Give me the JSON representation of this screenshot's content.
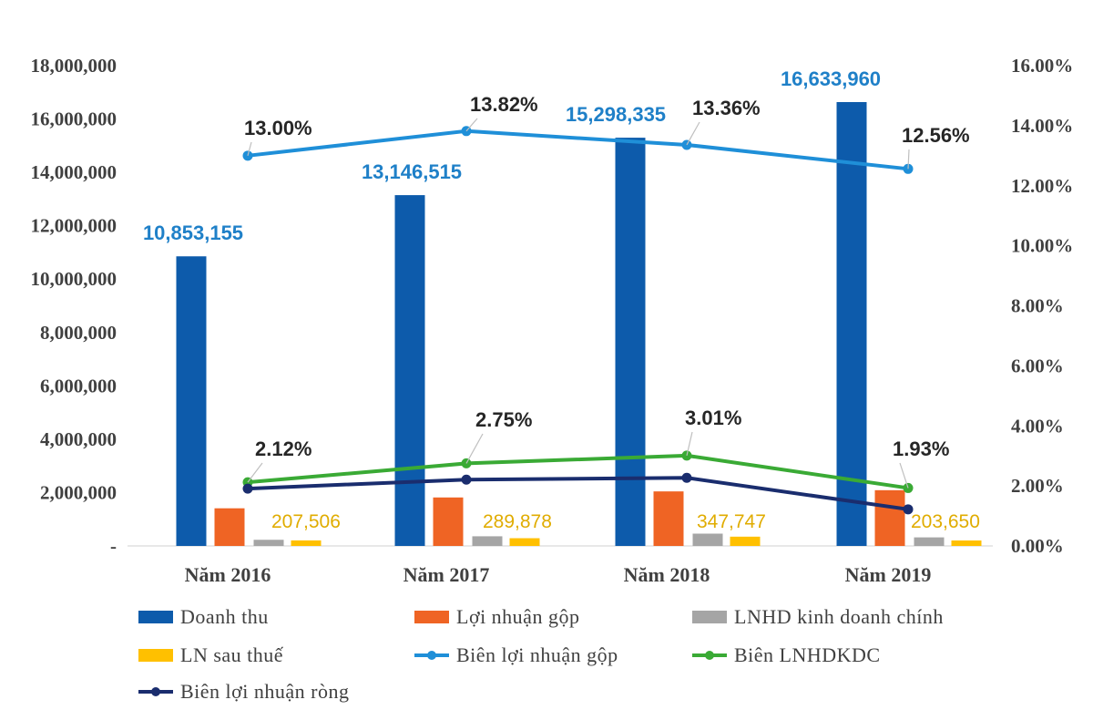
{
  "chart_data": {
    "type": "bar+line",
    "categories": [
      "Năm 2016",
      "Năm 2017",
      "Năm 2018",
      "Năm 2019"
    ],
    "y_left": {
      "ylim": [
        0,
        18000000
      ],
      "ticks": [
        "-",
        "2,000,000",
        "4,000,000",
        "6,000,000",
        "8,000,000",
        "10,000,000",
        "12,000,000",
        "14,000,000",
        "16,000,000",
        "18,000,000"
      ]
    },
    "y_right": {
      "ylim": [
        0,
        16
      ],
      "ticks": [
        "0.00%",
        "2.00%",
        "4.00%",
        "6.00%",
        "8.00%",
        "10.00%",
        "12.00%",
        "14.00%",
        "16.00%"
      ]
    },
    "bar_series": [
      {
        "name": "Doanh thu",
        "color": "#0d5bab",
        "values": [
          10853155,
          13146515,
          15298335,
          16633960
        ],
        "labels": [
          "10,853,155",
          "13,146,515",
          "15,298,335",
          "16,633,960"
        ]
      },
      {
        "name": "Lợi nhuận gộp",
        "color": "#ef6424",
        "values": [
          1411000,
          1817000,
          2044000,
          2089000
        ]
      },
      {
        "name": "LNHD kinh doanh chính",
        "color": "#a5a5a5",
        "values": [
          230000,
          362000,
          461000,
          321000
        ]
      },
      {
        "name": "LN sau thuế",
        "color": "#ffc000",
        "values": [
          207506,
          289878,
          347747,
          203650
        ],
        "labels": [
          "207,506",
          "289,878",
          "347,747",
          "203,650"
        ]
      }
    ],
    "line_series": [
      {
        "name": "Biên lợi nhuận gộp",
        "color": "#1f8fd8",
        "values": [
          13.0,
          13.82,
          13.36,
          12.56
        ],
        "labels": [
          "13.00%",
          "13.82%",
          "13.36%",
          "12.56%"
        ]
      },
      {
        "name": "Biên LNHDKDC",
        "color": "#3aaa35",
        "values": [
          2.12,
          2.75,
          3.01,
          1.93
        ],
        "labels": [
          "2.12%",
          "2.75%",
          "3.01%",
          "1.93%"
        ]
      },
      {
        "name": "Biên lợi nhuận ròng",
        "color": "#1a2d6e",
        "values": [
          1.91,
          2.21,
          2.27,
          1.22
        ]
      }
    ],
    "legend_position": "bottom",
    "grid": false
  }
}
